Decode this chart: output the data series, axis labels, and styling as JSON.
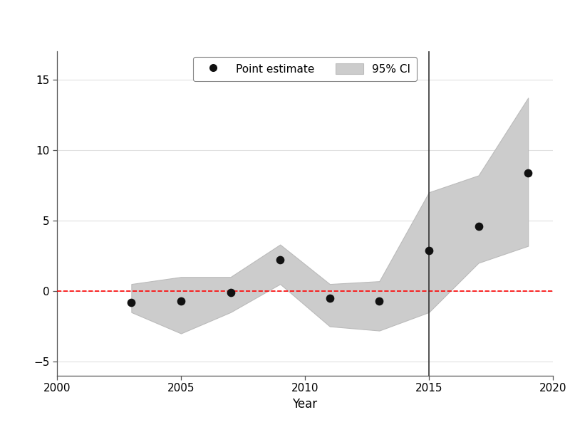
{
  "years": [
    2003,
    2005,
    2007,
    2009,
    2011,
    2013,
    2015,
    2017,
    2019
  ],
  "point_estimates": [
    -0.8,
    -0.7,
    -0.1,
    2.2,
    -0.5,
    -0.7,
    2.9,
    4.6,
    8.4
  ],
  "ci_lower": [
    -1.5,
    -3.0,
    -1.5,
    0.5,
    -2.5,
    -2.8,
    -1.5,
    2.0,
    3.2
  ],
  "ci_upper": [
    0.5,
    1.0,
    1.0,
    3.3,
    0.5,
    0.7,
    7.0,
    8.2,
    13.7
  ],
  "vline_x": 2015,
  "hline_y": 0,
  "xlim": [
    2000,
    2020
  ],
  "ylim": [
    -6,
    17
  ],
  "xlabel": "Year",
  "ylabel": "",
  "xticks": [
    2000,
    2005,
    2010,
    2015,
    2020
  ],
  "yticks": [
    -5,
    0,
    5,
    10,
    15
  ],
  "legend_point_label": "Point estimate",
  "legend_ci_label": "95% CI",
  "ci_color": "#cccccc",
  "ci_edge_color": "#bbbbbb",
  "point_color": "#111111",
  "vline_color": "#333333",
  "hline_color": "#ff0000",
  "background_color": "#ffffff",
  "grid_color": "#e0e0e0",
  "spine_color": "#555555"
}
